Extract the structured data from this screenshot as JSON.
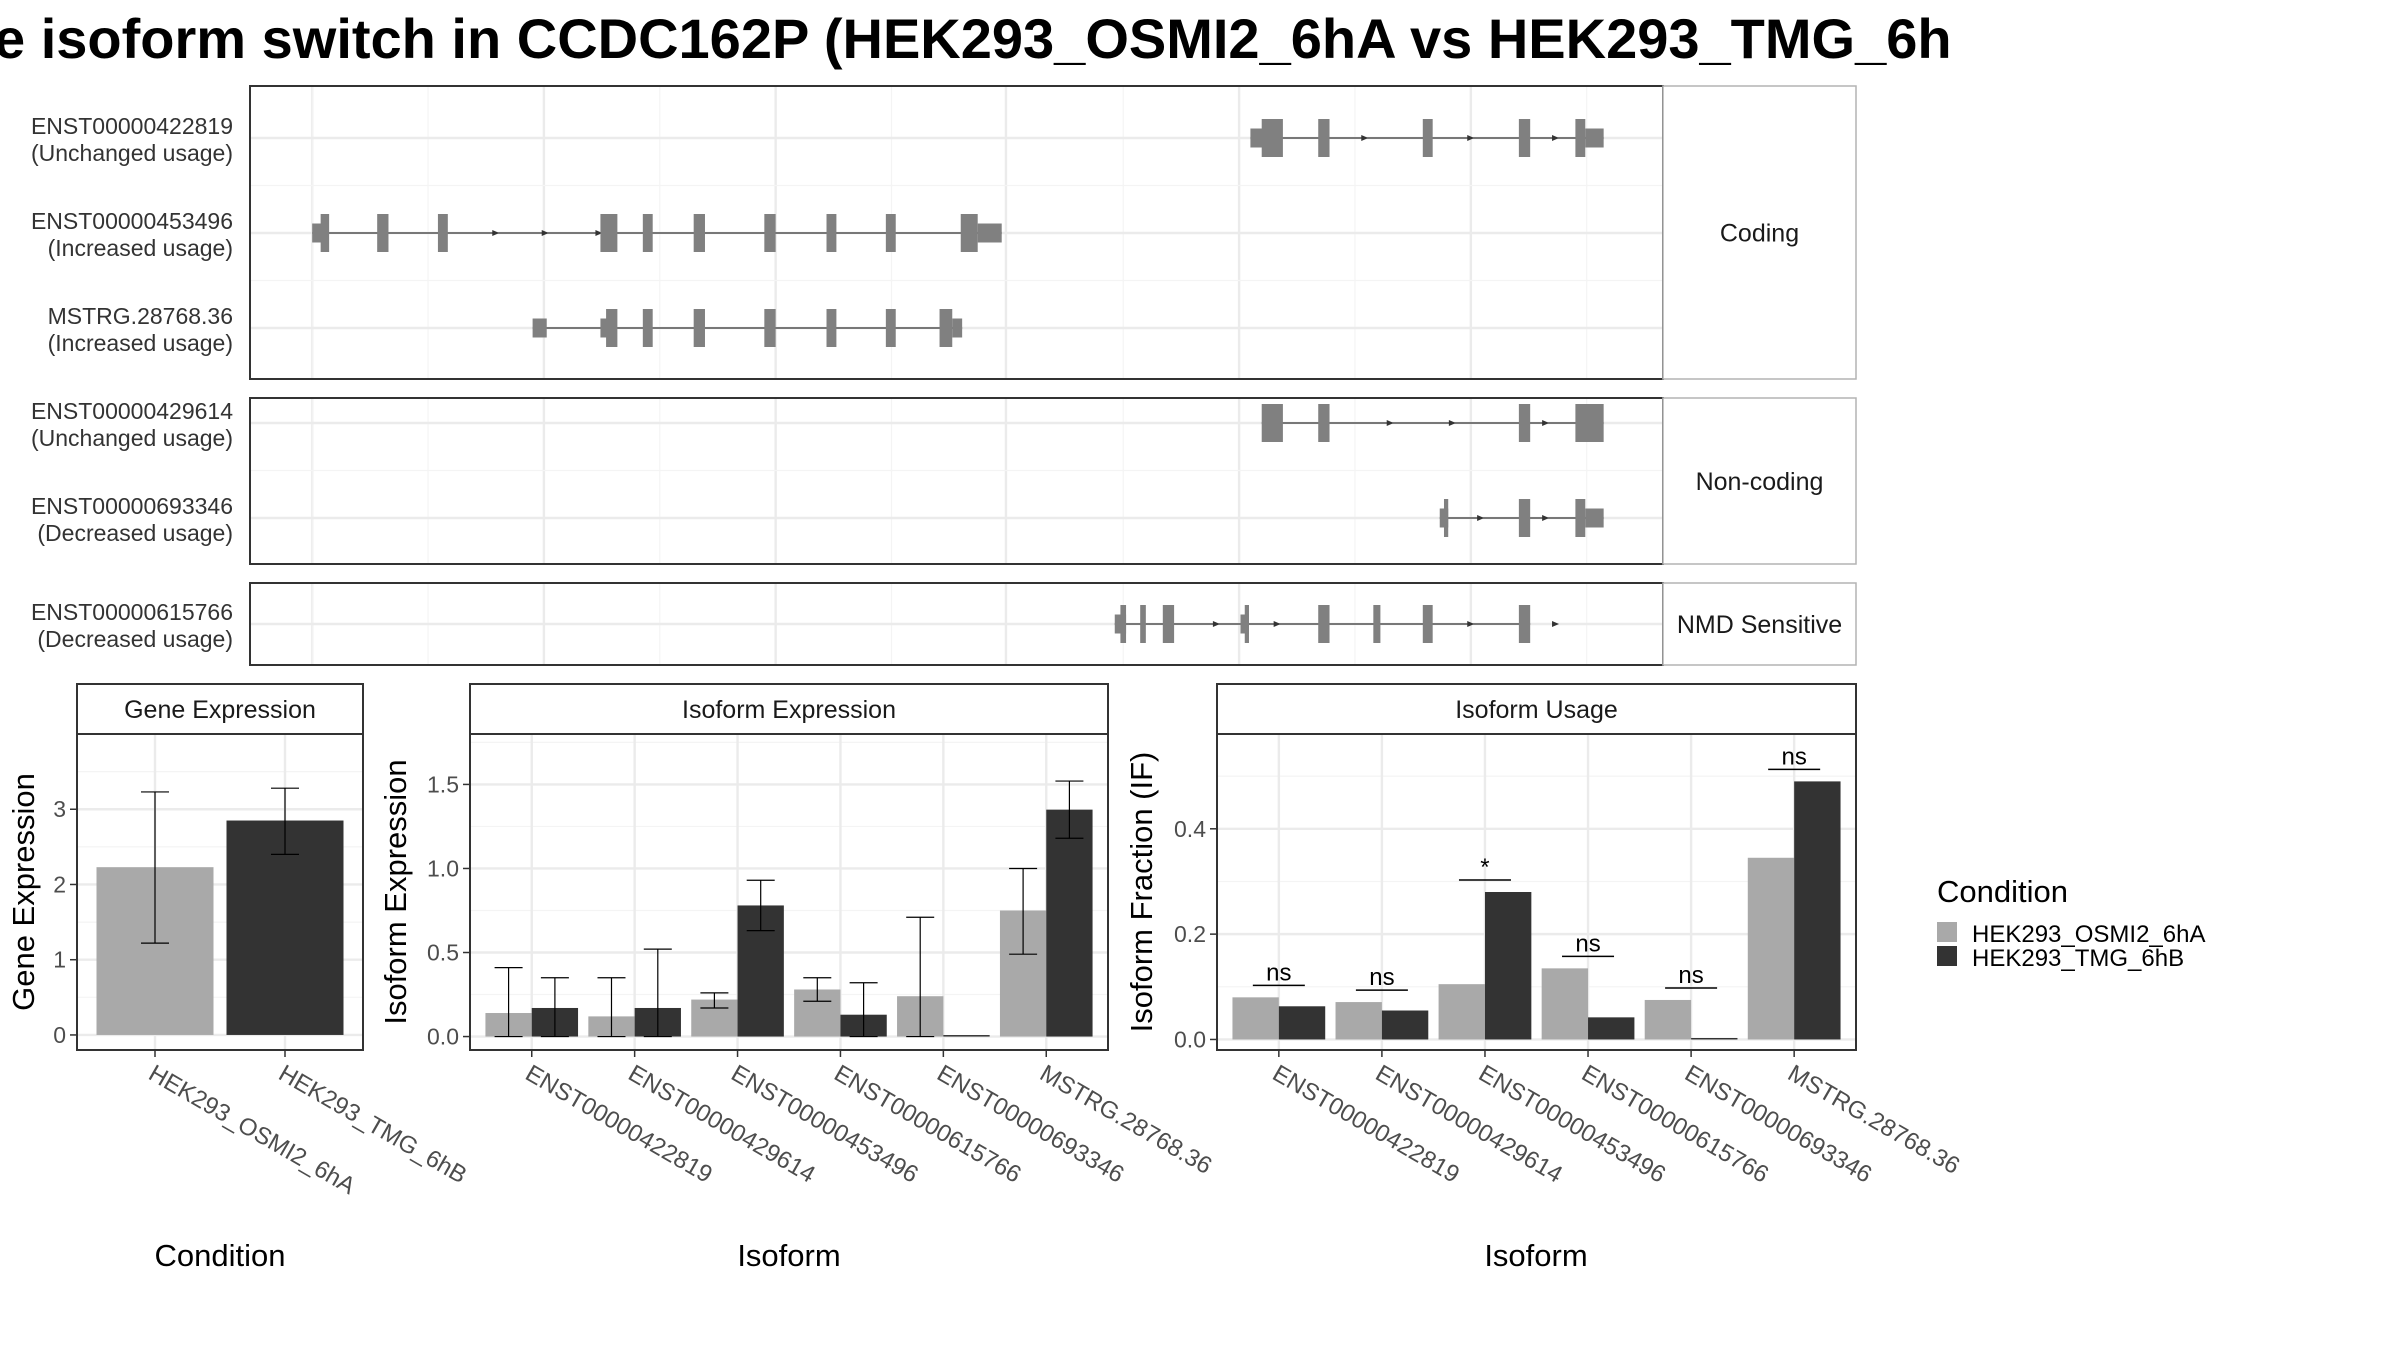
{
  "title": "e isoform switch in CCDC162P (HEK293_OSMI2_6hA vs HEK293_TMG_6h",
  "colors": {
    "cond1": "#a9a9a9",
    "cond2": "#333333",
    "transcript": "#808080"
  },
  "chart_data": [
    {
      "type": "transcript-structure",
      "facets": [
        {
          "label": "Coding",
          "tracks": [
            {
              "id": "ENST00000422819",
              "usage": "(Unchanged usage)",
              "start": 0.708,
              "end": 0.958,
              "introns": [
                [
                  0.708,
                  0.958
                ]
              ],
              "exons": [
                [
                  0.708,
                  0.723,
                  0.5
                ],
                [
                  0.716,
                  0.731,
                  1
                ],
                [
                  0.756,
                  0.764,
                  1
                ],
                [
                  0.83,
                  0.837,
                  1
                ],
                [
                  0.898,
                  0.906,
                  1
                ],
                [
                  0.938,
                  0.945,
                  1
                ],
                [
                  0.945,
                  0.958,
                  0.5
                ]
              ],
              "arrows": [
                0.79,
                0.865,
                0.925
              ]
            },
            {
              "id": "ENST00000453496",
              "usage": "(Increased usage)",
              "start": 0.044,
              "end": 0.532,
              "introns": [
                [
                  0.044,
                  0.532
                ]
              ],
              "exons": [
                [
                  0.044,
                  0.054,
                  0.5
                ],
                [
                  0.05,
                  0.056,
                  1
                ],
                [
                  0.09,
                  0.098,
                  1
                ],
                [
                  0.133,
                  0.14,
                  1
                ],
                [
                  0.248,
                  0.26,
                  1
                ],
                [
                  0.278,
                  0.285,
                  1
                ],
                [
                  0.314,
                  0.322,
                  1
                ],
                [
                  0.364,
                  0.372,
                  1
                ],
                [
                  0.408,
                  0.415,
                  1
                ],
                [
                  0.45,
                  0.457,
                  1
                ],
                [
                  0.503,
                  0.515,
                  1
                ],
                [
                  0.515,
                  0.532,
                  0.5
                ]
              ],
              "arrows": [
                0.175,
                0.21,
                0.248
              ]
            },
            {
              "id": "MSTRG.28768.36",
              "usage": "(Increased usage)",
              "start": 0.2,
              "end": 0.504,
              "introns": [
                [
                  0.2,
                  0.504
                ]
              ],
              "exons": [
                [
                  0.2,
                  0.21,
                  0.5
                ],
                [
                  0.248,
                  0.255,
                  0.5
                ],
                [
                  0.252,
                  0.26,
                  1
                ],
                [
                  0.278,
                  0.285,
                  1
                ],
                [
                  0.314,
                  0.322,
                  1
                ],
                [
                  0.364,
                  0.372,
                  1
                ],
                [
                  0.408,
                  0.415,
                  1
                ],
                [
                  0.45,
                  0.457,
                  1
                ],
                [
                  0.488,
                  0.497,
                  1
                ],
                [
                  0.497,
                  0.504,
                  0.5
                ]
              ],
              "arrows": []
            }
          ]
        },
        {
          "label": "Non-coding",
          "tracks": [
            {
              "id": "ENST00000429614",
              "usage": "(Unchanged usage)",
              "start": 0.716,
              "end": 0.958,
              "introns": [
                [
                  0.716,
                  0.958
                ]
              ],
              "exons": [
                [
                  0.716,
                  0.731,
                  1
                ],
                [
                  0.756,
                  0.764,
                  1
                ],
                [
                  0.898,
                  0.906,
                  1
                ],
                [
                  0.938,
                  0.958,
                  1
                ]
              ],
              "arrows": [
                0.808,
                0.852,
                0.918
              ]
            },
            {
              "id": "ENST00000693346",
              "usage": "(Decreased usage)",
              "start": 0.842,
              "end": 0.958,
              "introns": [
                [
                  0.842,
                  0.958
                ]
              ],
              "exons": [
                [
                  0.842,
                  0.848,
                  0.5
                ],
                [
                  0.845,
                  0.848,
                  1
                ],
                [
                  0.898,
                  0.906,
                  1
                ],
                [
                  0.938,
                  0.945,
                  1
                ],
                [
                  0.945,
                  0.958,
                  0.5
                ]
              ],
              "arrows": [
                0.872,
                0.918
              ]
            }
          ]
        },
        {
          "label": "NMD Sensitive",
          "tracks": [
            {
              "id": "ENST00000615766",
              "usage": "(Decreased usage)",
              "start": 0.612,
              "end": 0.906,
              "introns": [
                [
                  0.612,
                  0.906
                ]
              ],
              "exons": [
                [
                  0.612,
                  0.62,
                  0.5
                ],
                [
                  0.616,
                  0.62,
                  1
                ],
                [
                  0.63,
                  0.634,
                  1
                ],
                [
                  0.646,
                  0.654,
                  1
                ],
                [
                  0.701,
                  0.707,
                  0.5
                ],
                [
                  0.704,
                  0.707,
                  1
                ],
                [
                  0.756,
                  0.764,
                  1
                ],
                [
                  0.795,
                  0.8,
                  1
                ],
                [
                  0.83,
                  0.837,
                  1
                ],
                [
                  0.898,
                  0.906,
                  1
                ]
              ],
              "arrows": [
                0.685,
                0.728,
                0.865,
                0.925
              ]
            }
          ]
        }
      ]
    },
    {
      "type": "bar",
      "title": "Gene Expression",
      "xlabel": "Condition",
      "ylabel": "Gene Expression",
      "ylim": [
        -0.2,
        4.0
      ],
      "yticks": [
        0,
        1,
        2,
        3
      ],
      "categories": [
        "HEK293_OSMI2_6hA",
        "HEK293_TMG_6hB"
      ],
      "series": [
        {
          "name": "HEK293_OSMI2_6hA",
          "values": [
            2.23,
            null
          ],
          "errors": [
            [
              1.22,
              3.23
            ],
            null
          ]
        },
        {
          "name": "HEK293_TMG_6hB",
          "values": [
            null,
            2.85
          ],
          "errors": [
            null,
            [
              2.4,
              3.28
            ]
          ]
        }
      ]
    },
    {
      "type": "bar",
      "title": "Isoform Expression",
      "xlabel": "Isoform",
      "ylabel": "Isoform Expression",
      "ylim": [
        -0.08,
        1.8
      ],
      "yticks": [
        0.0,
        0.5,
        1.0,
        1.5
      ],
      "ytick_labels": [
        "0.0",
        "0.5",
        "1.0",
        "1.5"
      ],
      "categories": [
        "ENST00000422819",
        "ENST00000429614",
        "ENST00000453496",
        "ENST00000615766",
        "ENST00000693346",
        "MSTRG.28768.36"
      ],
      "series": [
        {
          "name": "HEK293_OSMI2_6hA",
          "values": [
            0.14,
            0.12,
            0.22,
            0.28,
            0.24,
            0.75
          ],
          "errors": [
            [
              0.0,
              0.41
            ],
            [
              0.0,
              0.35
            ],
            [
              0.17,
              0.26
            ],
            [
              0.21,
              0.35
            ],
            [
              0.0,
              0.71
            ],
            [
              0.49,
              1.0
            ]
          ]
        },
        {
          "name": "HEK293_TMG_6hB",
          "values": [
            0.17,
            0.17,
            0.78,
            0.13,
            0.0,
            1.35
          ],
          "errors": [
            [
              0.0,
              0.35
            ],
            [
              0.0,
              0.52
            ],
            [
              0.63,
              0.93
            ],
            [
              0.0,
              0.32
            ],
            null,
            [
              1.18,
              1.52
            ]
          ]
        }
      ]
    },
    {
      "type": "bar",
      "title": "Isoform Usage",
      "xlabel": "Isoform",
      "ylabel": "Isoform Fraction (IF)",
      "ylim": [
        -0.02,
        0.58
      ],
      "yticks": [
        0.0,
        0.2,
        0.4
      ],
      "ytick_labels": [
        "0.0",
        "0.2",
        "0.4"
      ],
      "categories": [
        "ENST00000422819",
        "ENST00000429614",
        "ENST00000453496",
        "ENST00000615766",
        "ENST00000693346",
        "MSTRG.28768.36"
      ],
      "series": [
        {
          "name": "HEK293_OSMI2_6hA",
          "values": [
            0.08,
            0.071,
            0.105,
            0.135,
            0.075,
            0.345
          ]
        },
        {
          "name": "HEK293_TMG_6hB",
          "values": [
            0.063,
            0.055,
            0.28,
            0.042,
            0.0,
            0.49
          ]
        }
      ],
      "significance": [
        "ns",
        "ns",
        "*",
        "ns",
        "ns",
        "ns"
      ]
    }
  ],
  "legend": {
    "title": "Condition",
    "entries": [
      "HEK293_OSMI2_6hA",
      "HEK293_TMG_6hB"
    ]
  }
}
